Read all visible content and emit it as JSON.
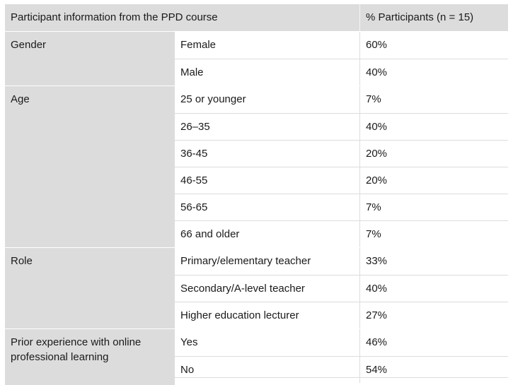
{
  "table": {
    "header": {
      "col1": "Participant information from the PPD course",
      "col2": "% Participants (n = 15)"
    },
    "groups": [
      {
        "label": "Gender",
        "rows": [
          {
            "value": "Female",
            "pct": "60%"
          },
          {
            "value": "Male",
            "pct": "40%"
          }
        ]
      },
      {
        "label": "Age",
        "rows": [
          {
            "value": "25 or younger",
            "pct": "7%"
          },
          {
            "value": "26–35",
            "pct": "40%"
          },
          {
            "value": "36-45",
            "pct": "20%"
          },
          {
            "value": "46-55",
            "pct": "20%"
          },
          {
            "value": "56-65",
            "pct": "7%"
          },
          {
            "value": "66 and older",
            "pct": "7%"
          }
        ]
      },
      {
        "label": "Role",
        "rows": [
          {
            "value": "Primary/elementary teacher",
            "pct": "33%"
          },
          {
            "value": "Secondary/A-level teacher",
            "pct": "40%"
          },
          {
            "value": "Higher education lecturer",
            "pct": "27%"
          }
        ]
      },
      {
        "label": "Prior experience with online professional learning",
        "rows": [
          {
            "value": "Yes",
            "pct": "46%"
          },
          {
            "value": "No",
            "pct": "54%"
          }
        ]
      }
    ]
  }
}
